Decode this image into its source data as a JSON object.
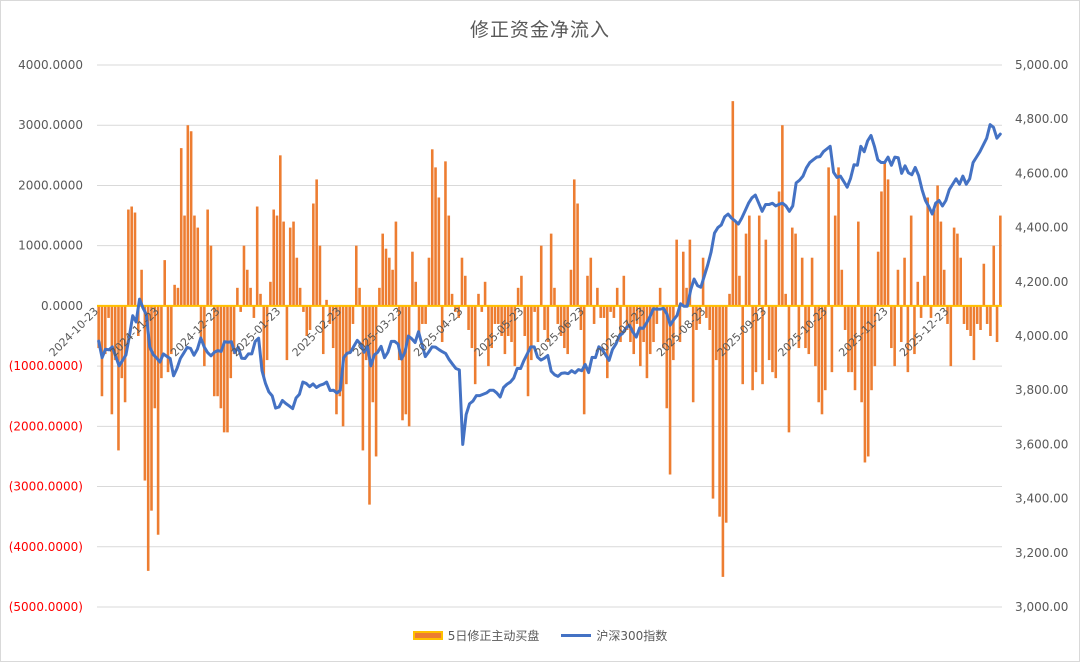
{
  "chart_data": {
    "type": "bar+line",
    "title": "修正资金净流入",
    "colors": {
      "bar": "#ed7d31",
      "bar_border": "#ffc000",
      "line": "#4472c4",
      "negative_tick": "#ff0000",
      "grid": "#d9d9d9"
    },
    "y_left": {
      "range": [
        -5000,
        4000
      ],
      "ticks": [
        "4000.0000",
        "3000.0000",
        "2000.0000",
        "1000.0000",
        "0.0000",
        "(1000.0000)",
        "(2000.0000)",
        "(3000.0000)",
        "(4000.0000)",
        "(5000.0000)"
      ]
    },
    "y_right": {
      "range": [
        3000,
        5000
      ],
      "ticks": [
        "5,000.00",
        "4,800.00",
        "4,600.00",
        "4,400.00",
        "4,200.00",
        "4,000.00",
        "3,800.00",
        "3,600.00",
        "3,400.00",
        "3,200.00",
        "3,000.00"
      ]
    },
    "x_tick_labels": [
      "2024-10-23",
      "2024-11-23",
      "2024-12-23",
      "2025-01-23",
      "2025-02-23",
      "2025-03-23",
      "2025-04-23",
      "2025-05-23",
      "2025-06-23",
      "2025-07-23",
      "2025-08-23",
      "2025-09-23",
      "2025-10-23",
      "2025-11-23",
      "2025-12-23"
    ],
    "grid": true,
    "legend_position": "bottom",
    "series": [
      {
        "name": "5日修正主动买盘",
        "type": "bar",
        "axis": "left",
        "values": [
          -700,
          -1500,
          -800,
          -200,
          -1800,
          -900,
          -2400,
          -1200,
          -1600,
          1600,
          1650,
          1550,
          -500,
          600,
          -2900,
          -4400,
          -3400,
          -1700,
          -3800,
          -1200,
          760,
          -1100,
          -800,
          350,
          300,
          2620,
          1500,
          3000,
          2900,
          1500,
          1300,
          -600,
          -1000,
          1600,
          1000,
          -1500,
          -1500,
          -1700,
          -2100,
          -2100,
          -1200,
          -800,
          300,
          -100,
          1000,
          600,
          300,
          -200,
          1650,
          200,
          -1200,
          -900,
          400,
          1600,
          1500,
          2500,
          1400,
          -900,
          1300,
          1400,
          800,
          300,
          -100,
          -500,
          -400,
          1700,
          2100,
          1000,
          -800,
          100,
          -300,
          -700,
          -1800,
          -1500,
          -2000,
          -1300,
          -800,
          -300,
          1000,
          300,
          -2400,
          -900,
          -3300,
          -1600,
          -2500,
          300,
          1200,
          950,
          800,
          600,
          1400,
          -900,
          -1900,
          -1800,
          -2000,
          900,
          400,
          -500,
          -300,
          -300,
          800,
          2600,
          2300,
          1800,
          -600,
          2400,
          1500,
          200,
          -100,
          -200,
          800,
          500,
          -400,
          -700,
          -1300,
          200,
          -100,
          400,
          -1000,
          -700,
          -300,
          -300,
          -500,
          -800,
          -500,
          -600,
          -1000,
          300,
          500,
          -500,
          -1500,
          -900,
          -100,
          -600,
          1000,
          -400,
          -600,
          1200,
          300,
          -300,
          -500,
          -700,
          -800,
          600,
          2100,
          1700,
          -400,
          -1800,
          500,
          800,
          -300,
          300,
          -200,
          -200,
          -1200,
          -100,
          -200,
          300,
          -600,
          500,
          -400,
          -600,
          -800,
          -300,
          -1000,
          -600,
          -1200,
          -800,
          -600,
          -300,
          300,
          -700,
          -1700,
          -2800,
          -900,
          1100,
          -600,
          900,
          300,
          1100,
          -1600,
          -400,
          -300,
          800,
          -200,
          -400,
          -3200,
          -900,
          -3500,
          -4500,
          -3600,
          200,
          3400,
          1400,
          500,
          -1300,
          1200,
          1500,
          -1400,
          -1100,
          1500,
          -1300,
          1100,
          -900,
          -1100,
          -1200,
          1900,
          3000,
          200,
          -2100,
          1300,
          1200,
          -700,
          800,
          -700,
          -800,
          800,
          -1000,
          -1600,
          -1800,
          -1400,
          2300,
          -1100,
          1500,
          2300,
          600,
          -400,
          -1100,
          -1100,
          -1400,
          1400,
          -1600,
          -2600,
          -2500,
          -1400,
          -1000,
          900,
          1900,
          2400,
          2100,
          -700,
          -1000,
          600,
          -600,
          800,
          -1100,
          1500,
          -800,
          400,
          -200,
          500,
          1800,
          -200,
          1600,
          2000,
          1400,
          600,
          -300,
          -1000,
          1300,
          1200,
          800,
          -300,
          -400,
          -500,
          -900,
          -300,
          -400,
          700,
          -300,
          -500,
          1000,
          -600,
          1500
        ]
      },
      {
        "name": "沪深300指数",
        "type": "line",
        "axis": "right",
        "values": [
          3981,
          3920,
          3951,
          3949,
          3960,
          3925,
          3890,
          3910,
          3930,
          3998,
          4075,
          4052,
          4136,
          4104,
          4079,
          3960,
          3932,
          3919,
          3904,
          3934,
          3925,
          3917,
          3853,
          3880,
          3917,
          3937,
          3958,
          3954,
          3929,
          3951,
          3993,
          3960,
          3939,
          3927,
          3940,
          3946,
          3943,
          3979,
          3977,
          3979,
          3939,
          3959,
          3918,
          3917,
          3934,
          3934,
          3980,
          3992,
          3872,
          3826,
          3794,
          3779,
          3734,
          3738,
          3762,
          3751,
          3742,
          3732,
          3771,
          3785,
          3830,
          3825,
          3813,
          3823,
          3810,
          3818,
          3822,
          3830,
          3799,
          3800,
          3790,
          3800,
          3920,
          3936,
          3940,
          3962,
          3984,
          3970,
          3940,
          3962,
          3890,
          3930,
          3940,
          3962,
          3920,
          3940,
          3980,
          3980,
          3970,
          3915,
          3940,
          4000,
          3990,
          3976,
          4016,
          3970,
          3924,
          3941,
          3960,
          3959,
          3950,
          3942,
          3935,
          3913,
          3896,
          3880,
          3875,
          3600,
          3710,
          3750,
          3760,
          3780,
          3780,
          3785,
          3790,
          3800,
          3800,
          3790,
          3775,
          3810,
          3822,
          3830,
          3845,
          3880,
          3880,
          3910,
          3935,
          3960,
          3960,
          3922,
          3911,
          3918,
          3928,
          3870,
          3857,
          3851,
          3862,
          3864,
          3861,
          3872,
          3864,
          3876,
          3872,
          3895,
          3865,
          3921,
          3920,
          3960,
          3950,
          3930,
          3910,
          3950,
          3970,
          4000,
          4010,
          4030,
          4040,
          4015,
          3996,
          4030,
          4028,
          4048,
          4070,
          4100,
          4099,
          4099,
          4102,
          4081,
          4040,
          4060,
          4076,
          4119,
          4110,
          4110,
          4170,
          4210,
          4186,
          4180,
          4221,
          4262,
          4310,
          4380,
          4400,
          4410,
          4440,
          4450,
          4435,
          4425,
          4413,
          4435,
          4462,
          4490,
          4510,
          4520,
          4490,
          4460,
          4485,
          4485,
          4490,
          4480,
          4486,
          4490,
          4480,
          4460,
          4480,
          4565,
          4575,
          4590,
          4620,
          4640,
          4650,
          4660,
          4662,
          4680,
          4690,
          4700,
          4604,
          4585,
          4590,
          4570,
          4549,
          4582,
          4632,
          4630,
          4700,
          4680,
          4720,
          4740,
          4700,
          4650,
          4640,
          4640,
          4660,
          4630,
          4660,
          4658,
          4600,
          4628,
          4602,
          4595,
          4622,
          4592,
          4540,
          4500,
          4477,
          4450,
          4490,
          4500,
          4480,
          4500,
          4540,
          4560,
          4580,
          4560,
          4590,
          4560,
          4580,
          4640,
          4660,
          4680,
          4705,
          4730,
          4780,
          4770,
          4730,
          4745
        ]
      }
    ]
  }
}
